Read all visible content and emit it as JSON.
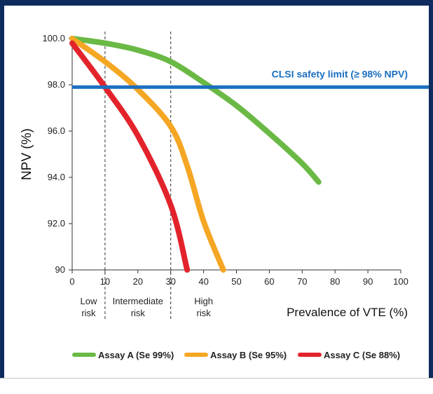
{
  "chart_data": {
    "type": "line",
    "title": "",
    "xlabel": "Prevalence of VTE (%)",
    "ylabel": "NPV (%)",
    "xlim": [
      0,
      100
    ],
    "ylim": [
      90,
      100
    ],
    "x_ticks": [
      0,
      10,
      20,
      30,
      40,
      50,
      60,
      70,
      80,
      90,
      100
    ],
    "x_tick_labels": [
      "0",
      "10",
      "20",
      "30",
      "40",
      "50",
      "60",
      "70",
      "80",
      "90",
      "100"
    ],
    "y_ticks": [
      90,
      92,
      94,
      96,
      98,
      100
    ],
    "y_tick_labels": [
      "90",
      "92.0",
      "94.0",
      "96.0",
      "98.0",
      "100.0"
    ],
    "grid": false,
    "legend_position": "bottom",
    "reference_line": {
      "label": "CLSI safety limit (≥ 98% NPV)",
      "y": 97.9,
      "color": "#1b6fc0"
    },
    "risk_dividers": [
      10,
      30
    ],
    "risk_bands": [
      {
        "label_line1": "Low",
        "label_line2": "risk",
        "x_center": 5
      },
      {
        "label_line1": "Intermediate",
        "label_line2": "risk",
        "x_center": 20
      },
      {
        "label_line1": "High",
        "label_line2": "risk",
        "x_center": 40
      }
    ],
    "series": [
      {
        "name": "Assay A (Se 99%)",
        "color": "#6ab945",
        "x": [
          0,
          10,
          20,
          30,
          40,
          50,
          60,
          70,
          75
        ],
        "y": [
          100,
          99.8,
          99.5,
          99.0,
          98.1,
          97.1,
          95.9,
          94.6,
          93.8
        ]
      },
      {
        "name": "Assay B (Se 95%)",
        "color": "#f5a623",
        "x": [
          0,
          10,
          20,
          30,
          35,
          40,
          46
        ],
        "y": [
          100,
          99.0,
          97.8,
          96.2,
          94.5,
          92.1,
          90
        ]
      },
      {
        "name": "Assay C (Se 88%)",
        "color": "#e3232b",
        "x": [
          0,
          10,
          20,
          30,
          35
        ],
        "y": [
          99.8,
          97.9,
          95.8,
          92.8,
          90
        ]
      }
    ]
  }
}
